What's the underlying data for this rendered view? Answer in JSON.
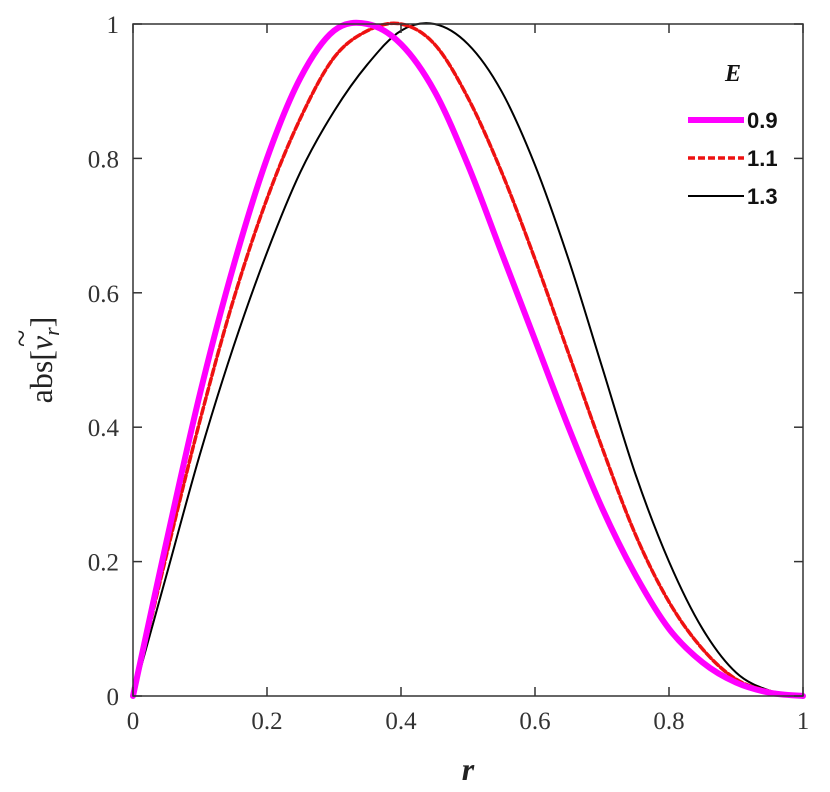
{
  "chart_data": {
    "type": "line",
    "xlabel": "r",
    "ylabel": "abs[ṽr]",
    "ylabel_parts": {
      "prefix": "abs[",
      "symbol": "v",
      "accent": "~",
      "subscript": "r",
      "suffix": "]"
    },
    "xlim": [
      0,
      1
    ],
    "ylim": [
      0,
      1
    ],
    "xticks": [
      {
        "value": 0,
        "label": "0"
      },
      {
        "value": 0.2,
        "label": "0.2"
      },
      {
        "value": 0.4,
        "label": "0.4"
      },
      {
        "value": 0.6,
        "label": "0.6"
      },
      {
        "value": 0.8,
        "label": "0.8"
      },
      {
        "value": 1,
        "label": "1"
      }
    ],
    "yticks": [
      {
        "value": 0,
        "label": "0"
      },
      {
        "value": 0.2,
        "label": "0.2"
      },
      {
        "value": 0.4,
        "label": "0.4"
      },
      {
        "value": 0.6,
        "label": "0.6"
      },
      {
        "value": 0.8,
        "label": "0.8"
      },
      {
        "value": 1,
        "label": "1"
      }
    ],
    "grid": false,
    "legend": {
      "title": "E",
      "placement": "top-right"
    },
    "series": [
      {
        "name": "0.9",
        "color": "#ff00ff",
        "style": "solid-thick",
        "x": [
          0,
          0.05,
          0.1,
          0.15,
          0.2,
          0.25,
          0.3,
          0.35,
          0.4,
          0.45,
          0.5,
          0.55,
          0.6,
          0.65,
          0.7,
          0.75,
          0.8,
          0.85,
          0.9,
          0.95,
          1
        ],
        "y": [
          0,
          0.23,
          0.45,
          0.64,
          0.8,
          0.92,
          0.99,
          1.0,
          0.97,
          0.9,
          0.79,
          0.66,
          0.53,
          0.4,
          0.28,
          0.18,
          0.1,
          0.05,
          0.02,
          0.005,
          0
        ]
      },
      {
        "name": "1.1",
        "color": "#ee1111",
        "style": "dashed",
        "x": [
          0,
          0.05,
          0.1,
          0.15,
          0.2,
          0.25,
          0.3,
          0.35,
          0.4,
          0.45,
          0.5,
          0.55,
          0.6,
          0.65,
          0.7,
          0.75,
          0.8,
          0.85,
          0.9,
          0.95,
          1
        ],
        "y": [
          0,
          0.21,
          0.41,
          0.59,
          0.74,
          0.86,
          0.95,
          0.99,
          1.0,
          0.97,
          0.89,
          0.78,
          0.65,
          0.51,
          0.37,
          0.24,
          0.14,
          0.07,
          0.025,
          0.007,
          0
        ]
      },
      {
        "name": "1.3",
        "color": "#000000",
        "style": "solid-thin",
        "x": [
          0,
          0.05,
          0.1,
          0.15,
          0.2,
          0.25,
          0.3,
          0.35,
          0.4,
          0.45,
          0.5,
          0.55,
          0.6,
          0.65,
          0.7,
          0.75,
          0.8,
          0.85,
          0.9,
          0.95,
          1
        ],
        "y": [
          0,
          0.18,
          0.36,
          0.52,
          0.66,
          0.78,
          0.87,
          0.94,
          0.99,
          1.0,
          0.97,
          0.9,
          0.79,
          0.65,
          0.49,
          0.33,
          0.2,
          0.1,
          0.035,
          0.008,
          0
        ]
      }
    ]
  }
}
